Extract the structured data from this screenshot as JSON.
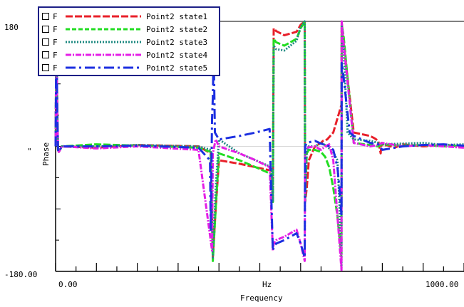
{
  "chart_data": {
    "type": "line",
    "title": "",
    "xlabel": "Frequency",
    "ylabel": "Phase",
    "x_unit_label": "Hz",
    "y_unit_label": "\"",
    "xlim": [
      0,
      1000
    ],
    "ylim": [
      -180,
      180
    ],
    "x_tick_labels": [
      "0.00",
      "1000.00"
    ],
    "y_tick_labels": [
      "180",
      "-180.00"
    ],
    "legend": {
      "position": "top-left",
      "checkbox_label": "F"
    },
    "series": [
      {
        "name": "Point2 state1",
        "color": "#e8202a",
        "dash": "dashed",
        "x": [
          0,
          2,
          4,
          6,
          8,
          15,
          100,
          200,
          350,
          380,
          385,
          392,
          400,
          450,
          490,
          529,
          532,
          534,
          540,
          560,
          590,
          600,
          610,
          611,
          615,
          620,
          635,
          650,
          655,
          665,
          680,
          700,
          700.5,
          705,
          730,
          770,
          780,
          790,
          796,
          798,
          805,
          810,
          830,
          850,
          900,
          950,
          1000
        ],
        "y": [
          0,
          170,
          60,
          -5,
          -8,
          0,
          -2,
          2,
          0,
          -10,
          -160,
          -90,
          -20,
          -25,
          -30,
          -35,
          -80,
          170,
          166,
          160,
          165,
          175,
          180,
          -80,
          -60,
          -20,
          0,
          5,
          8,
          10,
          20,
          60,
          178,
          150,
          20,
          15,
          12,
          8,
          -10,
          5,
          0,
          2,
          -2,
          3,
          0,
          2,
          0
        ]
      },
      {
        "name": "Point2 state2",
        "color": "#22dd22",
        "dash": "dashed",
        "x": [
          0,
          2,
          4,
          6,
          8,
          15,
          100,
          200,
          350,
          380,
          385,
          392,
          400,
          450,
          490,
          529,
          532,
          534,
          540,
          560,
          590,
          600,
          610,
          611,
          615,
          620,
          635,
          650,
          660,
          670,
          680,
          690,
          700,
          700.5,
          705,
          730,
          770,
          790,
          800,
          850,
          900,
          950,
          1000
        ],
        "y": [
          0,
          168,
          50,
          -5,
          -8,
          0,
          3,
          1,
          -2,
          -8,
          -165,
          -90,
          -10,
          -20,
          -30,
          -40,
          -80,
          155,
          150,
          145,
          155,
          170,
          180,
          -70,
          -10,
          -5,
          -5,
          -8,
          -15,
          -30,
          -60,
          -100,
          -160,
          175,
          160,
          5,
          2,
          0,
          3,
          1,
          2,
          0,
          1
        ]
      },
      {
        "name": "Point2 state3",
        "color": "#1f8a82",
        "dash": "dotted",
        "x": [
          0,
          2,
          4,
          6,
          8,
          15,
          100,
          200,
          350,
          380,
          385,
          392,
          400,
          450,
          490,
          529,
          532,
          534,
          540,
          560,
          590,
          600,
          610,
          611,
          615,
          620,
          635,
          650,
          660,
          670,
          680,
          690,
          695,
          700,
          700.5,
          705,
          715,
          730,
          770,
          790,
          800,
          850,
          900,
          950,
          1000
        ],
        "y": [
          0,
          170,
          55,
          -5,
          -8,
          0,
          0,
          2,
          0,
          -5,
          -160,
          -60,
          10,
          -10,
          -20,
          -30,
          -80,
          145,
          140,
          138,
          152,
          172,
          180,
          -80,
          -5,
          0,
          0,
          5,
          2,
          -3,
          -8,
          -20,
          -80,
          -175,
          175,
          140,
          20,
          10,
          8,
          5,
          3,
          4,
          5,
          2,
          3
        ]
      },
      {
        "name": "Point2 state4",
        "color": "#e41ee6",
        "dash": "dashdot",
        "x": [
          0,
          2,
          4,
          6,
          8,
          15,
          100,
          200,
          350,
          383,
          385,
          392,
          400,
          450,
          490,
          524,
          532,
          534,
          540,
          560,
          590,
          600,
          610,
          611,
          615,
          635,
          650,
          660,
          670,
          680,
          690,
          700,
          700.5,
          705,
          730,
          770,
          790,
          800,
          850,
          900,
          950,
          1000
        ],
        "y": [
          0,
          170,
          50,
          -5,
          -8,
          0,
          -3,
          0,
          -5,
          -150,
          -10,
          10,
          0,
          -10,
          -20,
          -30,
          -150,
          -140,
          -135,
          -130,
          -120,
          -140,
          -165,
          0,
          -2,
          0,
          -5,
          0,
          3,
          -20,
          -100,
          -178,
          180,
          150,
          5,
          0,
          2,
          5,
          0,
          2,
          0,
          -2
        ]
      },
      {
        "name": "Point2 state5",
        "color": "#1c2fe0",
        "dash": "longdash",
        "x": [
          0,
          2,
          4,
          6,
          8,
          15,
          100,
          200,
          350,
          378,
          380,
          383,
          385,
          387,
          390,
          400,
          450,
          490,
          524,
          529,
          532,
          534,
          540,
          560,
          590,
          600,
          610,
          611,
          615,
          635,
          650,
          660,
          670,
          680,
          690,
          695,
          700,
          700.5,
          705,
          720,
          730,
          770,
          790,
          800,
          850,
          900,
          950,
          1000
        ],
        "y": [
          0,
          170,
          50,
          -5,
          -8,
          0,
          0,
          1,
          -2,
          -20,
          -120,
          40,
          70,
          140,
          20,
          10,
          15,
          20,
          25,
          -90,
          -150,
          -145,
          -140,
          -135,
          -125,
          -140,
          -160,
          0,
          5,
          8,
          4,
          2,
          0,
          -5,
          -30,
          -60,
          -100,
          120,
          100,
          20,
          15,
          5,
          3,
          -5,
          0,
          2,
          3,
          1
        ]
      }
    ]
  }
}
